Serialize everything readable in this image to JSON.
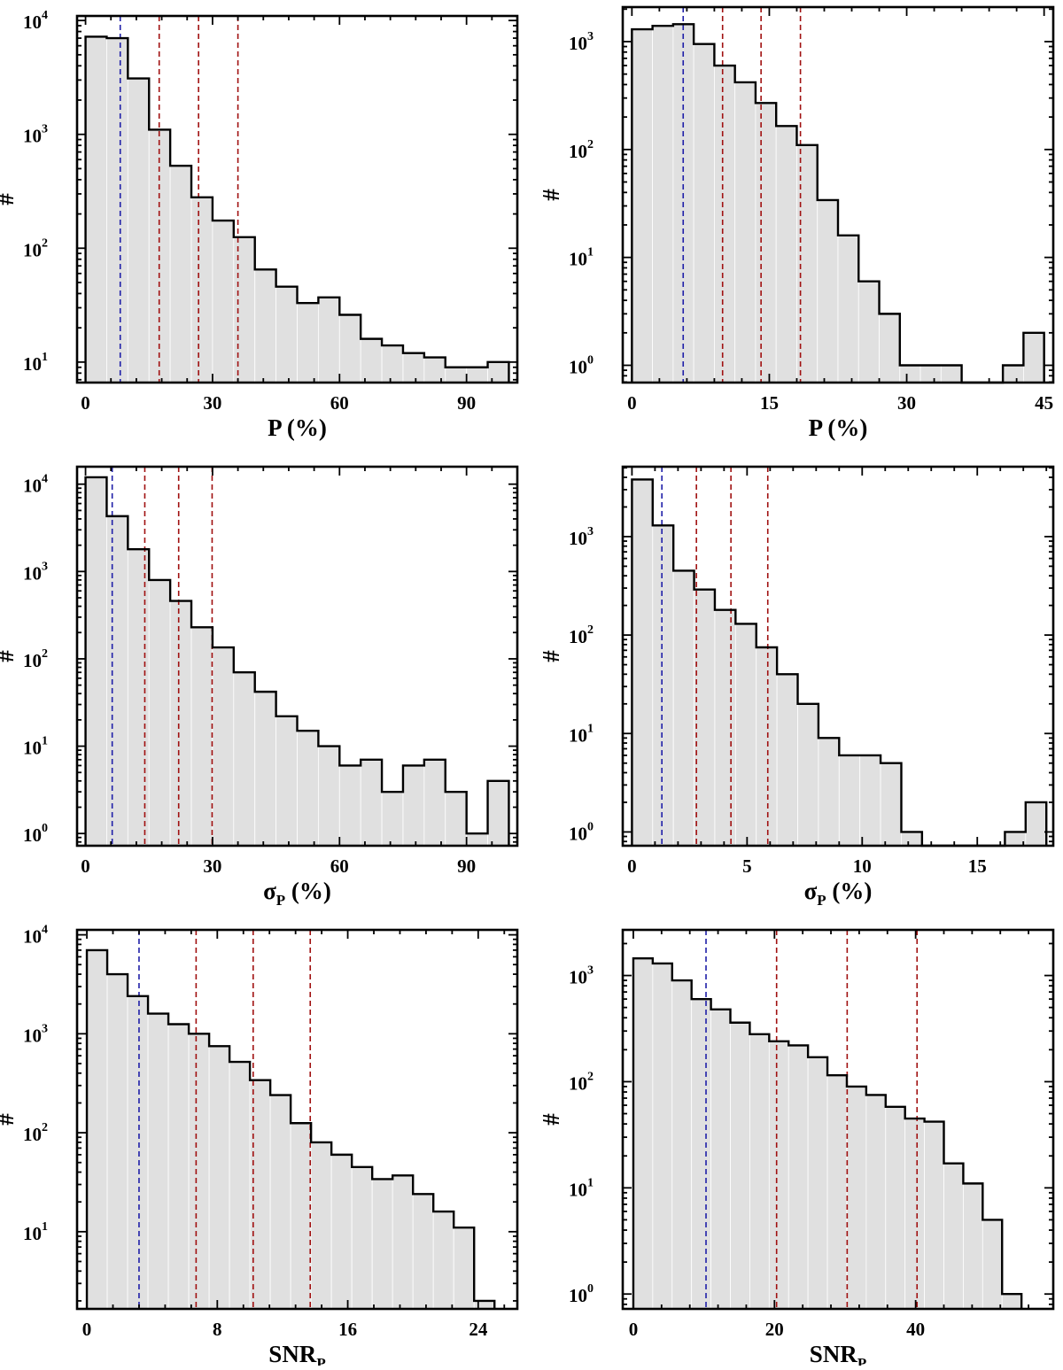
{
  "figure_title": "",
  "colors": {
    "bar_fill": "#e0e0e0",
    "bar_edge": "#ffffff",
    "step_line": "#000000",
    "blue_line": "#1f1fa8",
    "red_line": "#a01010",
    "frame": "#000000"
  },
  "chart_data": [
    {
      "type": "bar",
      "subtype": "histogram-log",
      "name": "P-full",
      "xlabel": "P (%)",
      "xlabel_main": "P",
      "xlabel_sub": "",
      "xlabel_rest": " (%)",
      "ylabel": "#",
      "xlim": [
        -2,
        102
      ],
      "ylog": true,
      "ylim_log10": [
        0.82,
        4.04
      ],
      "xticks": [
        0,
        30,
        60,
        90
      ],
      "yticks": [
        {
          "base": "10",
          "exp": "1",
          "log": 1
        },
        {
          "base": "10",
          "exp": "2",
          "log": 2
        },
        {
          "base": "10",
          "exp": "3",
          "log": 3
        },
        {
          "base": "10",
          "exp": "4",
          "log": 4
        }
      ],
      "bin_edges": [
        0,
        5,
        10,
        15,
        20,
        25,
        30,
        35,
        40,
        45,
        50,
        55,
        60,
        65,
        70,
        75,
        80,
        85,
        90,
        95,
        100
      ],
      "counts": [
        7200,
        7000,
        3100,
        1100,
        530,
        280,
        175,
        125,
        65,
        46,
        33,
        37,
        26,
        16,
        14,
        12,
        11,
        9,
        9,
        10
      ],
      "vlines": [
        {
          "x": 8.2,
          "color": "blue"
        },
        {
          "x": 17.4,
          "color": "red"
        },
        {
          "x": 26.7,
          "color": "red"
        },
        {
          "x": 36.0,
          "color": "red"
        }
      ]
    },
    {
      "type": "bar",
      "subtype": "histogram-log",
      "name": "P-subset",
      "xlabel": "P (%)",
      "xlabel_main": "P",
      "xlabel_sub": "",
      "xlabel_rest": " (%)",
      "ylabel": "#",
      "xlim": [
        -1,
        46
      ],
      "ylog": true,
      "ylim_log10": [
        -0.16,
        3.32
      ],
      "xticks": [
        0,
        15,
        30,
        45
      ],
      "yticks": [
        {
          "base": "10",
          "exp": "0",
          "log": 0
        },
        {
          "base": "10",
          "exp": "1",
          "log": 1
        },
        {
          "base": "10",
          "exp": "2",
          "log": 2
        },
        {
          "base": "10",
          "exp": "3",
          "log": 3
        }
      ],
      "bin_edges": [
        0,
        2.25,
        4.5,
        6.75,
        9,
        11.25,
        13.5,
        15.75,
        18,
        20.25,
        22.5,
        24.75,
        27,
        29.25,
        31.5,
        33.75,
        36,
        38.25,
        40.5,
        42.75,
        45
      ],
      "counts": [
        1300,
        1400,
        1450,
        950,
        600,
        420,
        270,
        165,
        110,
        34,
        16,
        6,
        3,
        1,
        1,
        1,
        0,
        0,
        1,
        2
      ],
      "vlines": [
        {
          "x": 5.6,
          "color": "blue"
        },
        {
          "x": 9.9,
          "color": "red"
        },
        {
          "x": 14.1,
          "color": "red"
        },
        {
          "x": 18.4,
          "color": "red"
        }
      ]
    },
    {
      "type": "bar",
      "subtype": "histogram-log",
      "name": "sigmaP-full",
      "xlabel": "σP (%)",
      "xlabel_main": "σ",
      "xlabel_sub": "P",
      "xlabel_rest": " (%)",
      "ylabel": "#",
      "xlim": [
        -2,
        102
      ],
      "ylog": true,
      "ylim_log10": [
        -0.14,
        4.2
      ],
      "xticks": [
        0,
        30,
        60,
        90
      ],
      "yticks": [
        {
          "base": "10",
          "exp": "0",
          "log": 0
        },
        {
          "base": "10",
          "exp": "1",
          "log": 1
        },
        {
          "base": "10",
          "exp": "2",
          "log": 2
        },
        {
          "base": "10",
          "exp": "3",
          "log": 3
        },
        {
          "base": "10",
          "exp": "4",
          "log": 4
        }
      ],
      "bin_edges": [
        0,
        5,
        10,
        15,
        20,
        25,
        30,
        35,
        40,
        45,
        50,
        55,
        60,
        65,
        70,
        75,
        80,
        85,
        90,
        95,
        100
      ],
      "counts": [
        12000,
        4300,
        1800,
        800,
        460,
        230,
        135,
        70,
        42,
        22,
        15,
        10,
        6,
        7,
        3,
        6,
        7,
        3,
        1,
        4
      ],
      "vlines": [
        {
          "x": 6.3,
          "color": "blue"
        },
        {
          "x": 14.0,
          "color": "red"
        },
        {
          "x": 22.0,
          "color": "red"
        },
        {
          "x": 29.9,
          "color": "red"
        }
      ]
    },
    {
      "type": "bar",
      "subtype": "histogram-log",
      "name": "sigmaP-subset",
      "xlabel": "σP (%)",
      "xlabel_main": "σ",
      "xlabel_sub": "P",
      "xlabel_rest": " (%)",
      "ylabel": "#",
      "xlim": [
        -0.4,
        18.3
      ],
      "ylog": true,
      "ylim_log10": [
        -0.14,
        3.71
      ],
      "xticks": [
        0,
        5,
        10,
        15
      ],
      "yticks": [
        {
          "base": "10",
          "exp": "0",
          "log": 0
        },
        {
          "base": "10",
          "exp": "1",
          "log": 1
        },
        {
          "base": "10",
          "exp": "2",
          "log": 2
        },
        {
          "base": "10",
          "exp": "3",
          "log": 3
        }
      ],
      "bin_edges": [
        0,
        0.9,
        1.8,
        2.7,
        3.6,
        4.5,
        5.4,
        6.3,
        7.2,
        8.1,
        9.0,
        9.9,
        10.8,
        11.7,
        12.6,
        13.5,
        14.4,
        15.3,
        16.2,
        17.1,
        18.0
      ],
      "counts": [
        3800,
        1300,
        450,
        290,
        180,
        130,
        75,
        40,
        20,
        9,
        6,
        6,
        5,
        1,
        0,
        0,
        0,
        0,
        1,
        2
      ],
      "vlines": [
        {
          "x": 1.3,
          "color": "blue"
        },
        {
          "x": 2.8,
          "color": "red"
        },
        {
          "x": 4.3,
          "color": "red"
        },
        {
          "x": 5.9,
          "color": "red"
        }
      ]
    },
    {
      "type": "bar",
      "subtype": "histogram-log",
      "name": "SNR-full",
      "xlabel": "SNRP",
      "xlabel_main": "SNR",
      "xlabel_sub": "P",
      "xlabel_rest": "",
      "ylabel": "#",
      "xlim": [
        -0.6,
        26.4
      ],
      "ylog": true,
      "ylim_log10": [
        0.22,
        4.05
      ],
      "xticks": [
        0,
        8,
        16,
        24
      ],
      "yticks": [
        {
          "base": "10",
          "exp": "1",
          "log": 1
        },
        {
          "base": "10",
          "exp": "2",
          "log": 2
        },
        {
          "base": "10",
          "exp": "3",
          "log": 3
        },
        {
          "base": "10",
          "exp": "4",
          "log": 4
        }
      ],
      "bin_edges": [
        0,
        1.25,
        2.5,
        3.75,
        5,
        6.25,
        7.5,
        8.75,
        10,
        11.25,
        12.5,
        13.75,
        15,
        16.25,
        17.5,
        18.75,
        20,
        21.25,
        22.5,
        23.75,
        25
      ],
      "counts": [
        7000,
        4000,
        2400,
        1600,
        1250,
        1000,
        750,
        520,
        340,
        240,
        125,
        80,
        60,
        45,
        34,
        37,
        24,
        16,
        11,
        2
      ],
      "vlines": [
        {
          "x": 3.2,
          "color": "blue"
        },
        {
          "x": 6.7,
          "color": "red"
        },
        {
          "x": 10.2,
          "color": "red"
        },
        {
          "x": 13.7,
          "color": "red"
        }
      ]
    },
    {
      "type": "bar",
      "subtype": "histogram-log",
      "name": "SNR-subset",
      "xlabel": "SNRP",
      "xlabel_main": "SNR",
      "xlabel_sub": "P",
      "xlabel_rest": "",
      "ylabel": "#",
      "xlim": [
        -1.5,
        59.5
      ],
      "ylog": true,
      "ylim_log10": [
        -0.14,
        3.43
      ],
      "xticks": [
        0,
        20,
        40
      ],
      "yticks": [
        {
          "base": "10",
          "exp": "0",
          "log": 0
        },
        {
          "base": "10",
          "exp": "1",
          "log": 1
        },
        {
          "base": "10",
          "exp": "2",
          "log": 2
        },
        {
          "base": "10",
          "exp": "3",
          "log": 3
        }
      ],
      "bin_edges": [
        0,
        2.75,
        5.5,
        8.25,
        11,
        13.75,
        16.5,
        19.25,
        22,
        24.75,
        27.5,
        30.25,
        33,
        35.75,
        38.5,
        41.25,
        44,
        46.75,
        49.5,
        52.25,
        55
      ],
      "counts": [
        1450,
        1300,
        900,
        600,
        480,
        360,
        280,
        240,
        220,
        170,
        115,
        90,
        75,
        58,
        45,
        42,
        17,
        11,
        5,
        1
      ],
      "vlines": [
        {
          "x": 10.3,
          "color": "blue"
        },
        {
          "x": 20.3,
          "color": "red"
        },
        {
          "x": 30.3,
          "color": "red"
        },
        {
          "x": 40.2,
          "color": "red"
        }
      ]
    }
  ]
}
